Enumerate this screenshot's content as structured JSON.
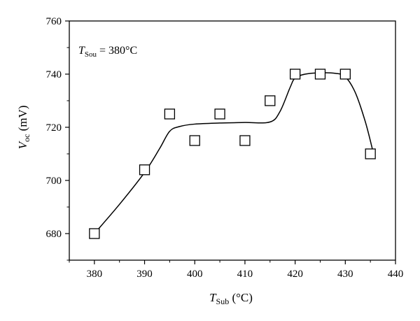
{
  "chart_data": {
    "type": "scatter",
    "title": "",
    "xlabel": {
      "main": "T",
      "sub": "Sub",
      "unit": " (°C)"
    },
    "ylabel": {
      "main": "V",
      "sub": "oc",
      "unit": " (mV)"
    },
    "xlim": [
      375,
      440
    ],
    "ylim": [
      670,
      760
    ],
    "xticks": [
      380,
      390,
      400,
      410,
      420,
      430,
      440
    ],
    "yticks": [
      680,
      700,
      720,
      740,
      760
    ],
    "grid": false,
    "legend": "none",
    "annotation": {
      "main": "T",
      "sub": "Sou",
      "text": " = 380°C"
    },
    "series": [
      {
        "marker": "open-square",
        "x": [
          380,
          390,
          395,
          400,
          405,
          410,
          415,
          420,
          425,
          430,
          435
        ],
        "y": [
          680,
          704,
          725,
          715,
          725,
          715,
          730,
          740,
          740,
          740,
          710
        ]
      }
    ],
    "fit_curve": {
      "x": [
        380,
        385,
        390,
        393,
        395,
        397,
        400,
        405,
        410,
        415,
        417,
        419,
        420,
        422,
        425,
        428,
        430,
        432,
        434,
        435.5
      ],
      "y": [
        680,
        691,
        703,
        712,
        718.5,
        720.3,
        721.2,
        721.6,
        721.8,
        722,
        726,
        735,
        738.5,
        740,
        740.5,
        740.3,
        739,
        733,
        722,
        711
      ]
    }
  }
}
